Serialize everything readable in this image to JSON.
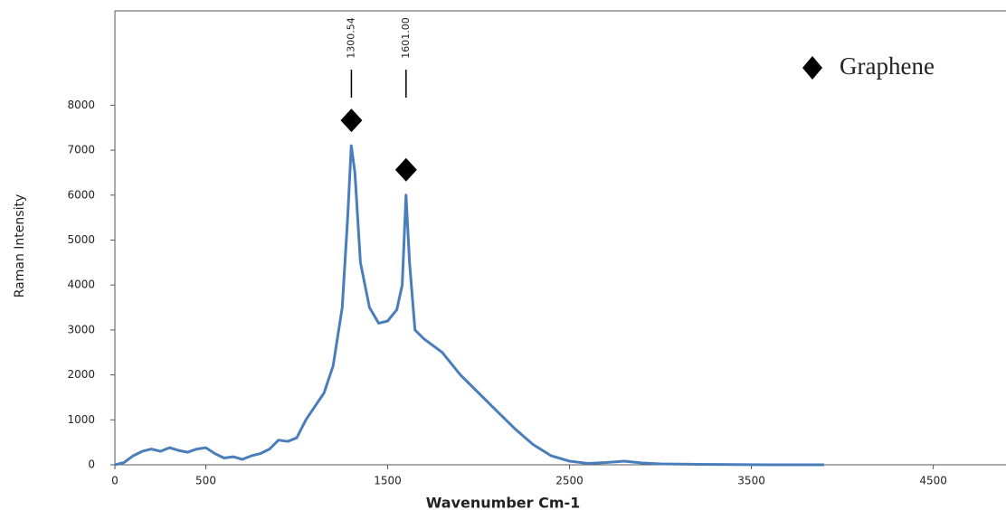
{
  "chart_data": {
    "type": "line",
    "xlabel": "Wavenumber Cm-1",
    "ylabel": "Raman Intensity",
    "x": [
      0,
      50,
      100,
      150,
      200,
      250,
      300,
      350,
      400,
      450,
      500,
      550,
      600,
      650,
      700,
      750,
      800,
      850,
      900,
      950,
      1000,
      1050,
      1100,
      1150,
      1200,
      1250,
      1280,
      1300,
      1320,
      1350,
      1400,
      1450,
      1500,
      1550,
      1580,
      1601,
      1620,
      1650,
      1700,
      1800,
      1900,
      2000,
      2100,
      2200,
      2300,
      2400,
      2500,
      2600,
      2700,
      2800,
      2900,
      3000,
      3200,
      3400,
      3600,
      3800,
      3900
    ],
    "series": [
      {
        "name": "Graphene",
        "color": "#4a7ebb",
        "values": [
          0,
          50,
          200,
          300,
          350,
          300,
          380,
          320,
          280,
          350,
          380,
          250,
          150,
          180,
          120,
          200,
          250,
          350,
          550,
          520,
          600,
          1000,
          1300,
          1600,
          2200,
          3500,
          5500,
          7100,
          6500,
          4500,
          3500,
          3150,
          3200,
          3450,
          4000,
          6000,
          4500,
          3000,
          2800,
          2500,
          2000,
          1600,
          1200,
          800,
          450,
          200,
          80,
          30,
          50,
          80,
          40,
          20,
          10,
          5,
          0,
          0,
          0
        ]
      }
    ],
    "annotations": [
      {
        "x": 1300.54,
        "label": "1300.54"
      },
      {
        "x": 1601,
        "label": "1601.00"
      }
    ],
    "xlim": [
      0,
      4900
    ],
    "ylim": [
      0,
      10100
    ],
    "xticks": [
      0,
      500,
      1500,
      2500,
      3500,
      4500
    ],
    "yticks": [
      0,
      1000,
      2000,
      3000,
      4000,
      5000,
      6000,
      7000,
      8000
    ]
  }
}
